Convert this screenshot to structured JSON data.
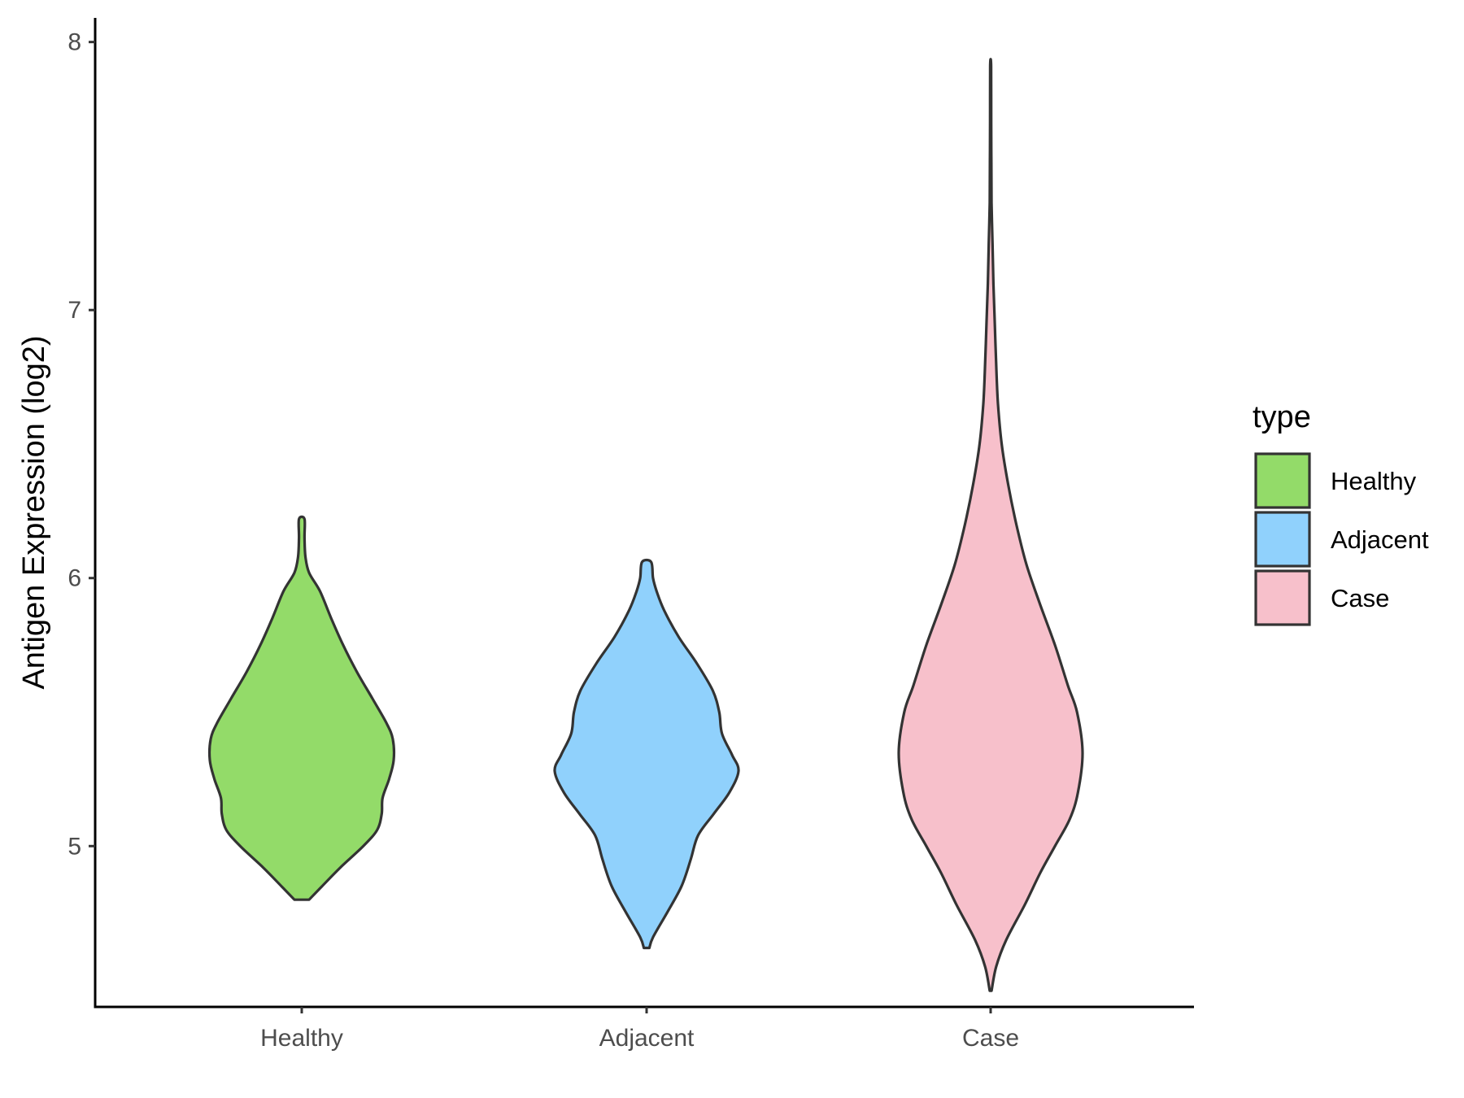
{
  "chart_data": {
    "type": "violin",
    "xlabel": "",
    "ylabel": "Antigen Expression (log2)",
    "ylim": [
      4.4,
      8.09
    ],
    "yticks": [
      5,
      6,
      7,
      8
    ],
    "categories": [
      "Healthy",
      "Adjacent",
      "Case"
    ],
    "legend": {
      "title": "type",
      "placement": "right",
      "entries": [
        "Healthy",
        "Adjacent",
        "Case"
      ]
    },
    "grid": false,
    "series": [
      {
        "category": "Healthy",
        "color": "#93DB69",
        "min": 4.8,
        "max": 6.22,
        "density_profile": [
          [
            4.8,
            0.08
          ],
          [
            4.85,
            0.22
          ],
          [
            4.92,
            0.42
          ],
          [
            5.0,
            0.67
          ],
          [
            5.06,
            0.82
          ],
          [
            5.12,
            0.87
          ],
          [
            5.18,
            0.88
          ],
          [
            5.25,
            0.95
          ],
          [
            5.32,
            1.0
          ],
          [
            5.4,
            0.99
          ],
          [
            5.46,
            0.92
          ],
          [
            5.55,
            0.77
          ],
          [
            5.65,
            0.6
          ],
          [
            5.75,
            0.45
          ],
          [
            5.85,
            0.32
          ],
          [
            5.95,
            0.2
          ],
          [
            6.02,
            0.08
          ],
          [
            6.08,
            0.04
          ],
          [
            6.15,
            0.03
          ],
          [
            6.22,
            0.03
          ]
        ]
      },
      {
        "category": "Adjacent",
        "color": "#90D1FC",
        "min": 4.62,
        "max": 6.06,
        "density_profile": [
          [
            4.62,
            0.03
          ],
          [
            4.66,
            0.07
          ],
          [
            4.75,
            0.22
          ],
          [
            4.85,
            0.38
          ],
          [
            4.95,
            0.48
          ],
          [
            5.04,
            0.56
          ],
          [
            5.12,
            0.73
          ],
          [
            5.2,
            0.9
          ],
          [
            5.28,
            1.0
          ],
          [
            5.34,
            0.93
          ],
          [
            5.42,
            0.82
          ],
          [
            5.5,
            0.79
          ],
          [
            5.58,
            0.72
          ],
          [
            5.68,
            0.55
          ],
          [
            5.78,
            0.35
          ],
          [
            5.88,
            0.19
          ],
          [
            5.95,
            0.11
          ],
          [
            6.0,
            0.07
          ],
          [
            6.06,
            0.05
          ]
        ]
      },
      {
        "category": "Case",
        "color": "#F7C0CB",
        "min": 4.46,
        "max": 7.91,
        "density_profile": [
          [
            4.46,
            0.01
          ],
          [
            4.55,
            0.06
          ],
          [
            4.65,
            0.17
          ],
          [
            4.78,
            0.37
          ],
          [
            4.9,
            0.54
          ],
          [
            5.0,
            0.7
          ],
          [
            5.1,
            0.86
          ],
          [
            5.2,
            0.95
          ],
          [
            5.35,
            1.0
          ],
          [
            5.5,
            0.94
          ],
          [
            5.6,
            0.84
          ],
          [
            5.75,
            0.7
          ],
          [
            5.9,
            0.54
          ],
          [
            6.05,
            0.39
          ],
          [
            6.2,
            0.28
          ],
          [
            6.35,
            0.19
          ],
          [
            6.5,
            0.12
          ],
          [
            6.65,
            0.08
          ],
          [
            6.8,
            0.06
          ],
          [
            6.95,
            0.045
          ],
          [
            7.1,
            0.03
          ],
          [
            7.25,
            0.02
          ],
          [
            7.4,
            0.01
          ],
          [
            7.55,
            0.008
          ],
          [
            7.7,
            0.006
          ],
          [
            7.91,
            0.005
          ]
        ]
      }
    ]
  }
}
